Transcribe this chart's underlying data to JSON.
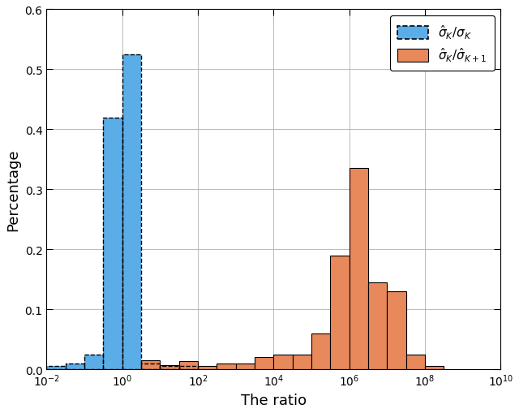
{
  "title": "",
  "xlabel": "The ratio",
  "ylabel": "Percentage",
  "xlim_log": [
    -2,
    10
  ],
  "ylim": [
    0,
    0.6
  ],
  "yticks": [
    0.0,
    0.1,
    0.2,
    0.3,
    0.4,
    0.5,
    0.6
  ],
  "xticks_log": [
    -2,
    0,
    2,
    4,
    6,
    8,
    10
  ],
  "blue_bars": {
    "bins_edges_log": [
      -2.0,
      -1.5,
      -1.0,
      -0.5,
      0.0,
      0.5,
      1.0,
      1.5,
      2.0
    ],
    "heights": [
      0.005,
      0.01,
      0.025,
      0.42,
      0.525,
      0.01,
      0.005,
      0.005
    ]
  },
  "orange_bars": {
    "bins_edges_log": [
      0.5,
      1.0,
      1.5,
      2.0,
      2.5,
      3.0,
      3.5,
      4.0,
      4.5,
      5.0,
      5.5,
      6.0,
      6.5,
      7.0,
      7.5,
      8.0,
      8.5,
      9.0,
      9.5
    ],
    "heights": [
      0.015,
      0.007,
      0.013,
      0.005,
      0.01,
      0.01,
      0.02,
      0.025,
      0.025,
      0.06,
      0.19,
      0.335,
      0.145,
      0.13,
      0.025,
      0.005,
      0.0,
      0.0
    ]
  },
  "blue_color": "#5BADE8",
  "orange_color": "#E8895C",
  "legend_label_blue": "$\\hat{\\sigma}_K/\\sigma_K$",
  "legend_label_orange": "$\\hat{\\sigma}_K/\\hat{\\sigma}_{K+1}$",
  "figsize": [
    6.4,
    5.1
  ],
  "dpi": 100
}
